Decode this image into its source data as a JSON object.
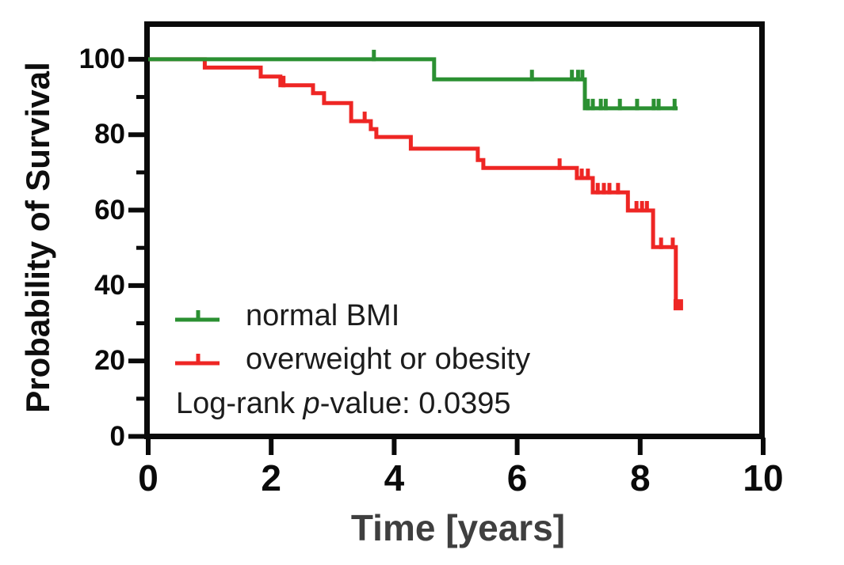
{
  "chart_data": {
    "type": "line",
    "subtype": "kaplan-meier-step",
    "title": "",
    "xlabel": "Time [years]",
    "ylabel": "Probability of Survival",
    "xlim": [
      0,
      10
    ],
    "ylim": [
      0,
      100
    ],
    "grid": false,
    "legend_position": "inside-lower-left",
    "axis_color": "#0a0a0a",
    "x_axis": {
      "major_ticks": [
        0,
        2,
        4,
        6,
        8,
        10
      ]
    },
    "y_axis": {
      "major_ticks": [
        0,
        20,
        40,
        60,
        80,
        100
      ],
      "minor_ticks": [
        10,
        30,
        50,
        70,
        90
      ]
    },
    "annotation": {
      "prefix": "Log-rank ",
      "italic": "p",
      "suffix": "-value: 0.0395"
    },
    "series": [
      {
        "name": "normal BMI",
        "color": "#2b9032",
        "steps": [
          [
            0,
            100
          ],
          [
            4.65,
            94.7
          ],
          [
            7.1,
            87.0
          ]
        ],
        "end_time": 8.61,
        "censors": [
          [
            3.67,
            100
          ],
          [
            6.24,
            94.7
          ],
          [
            6.89,
            94.7
          ],
          [
            6.99,
            94.7
          ],
          [
            7.06,
            94.7
          ],
          [
            7.15,
            87.0
          ],
          [
            7.23,
            87.0
          ],
          [
            7.36,
            87.0
          ],
          [
            7.44,
            87.0
          ],
          [
            7.67,
            87.0
          ],
          [
            7.95,
            87.0
          ],
          [
            8.22,
            87.0
          ],
          [
            8.3,
            87.0
          ],
          [
            8.56,
            87.0
          ]
        ]
      },
      {
        "name": "overweight or obesity",
        "color": "#ee2624",
        "steps": [
          [
            0,
            100
          ],
          [
            0.92,
            97.8
          ],
          [
            1.83,
            95.4
          ],
          [
            2.15,
            93.1
          ],
          [
            2.68,
            91.0
          ],
          [
            2.86,
            88.4
          ],
          [
            3.3,
            83.6
          ],
          [
            3.62,
            81.5
          ],
          [
            3.71,
            79.4
          ],
          [
            4.27,
            76.3
          ],
          [
            5.36,
            73.3
          ],
          [
            5.45,
            71.2
          ],
          [
            6.97,
            68.5
          ],
          [
            7.23,
            64.7
          ],
          [
            7.8,
            59.9
          ],
          [
            8.21,
            50.2
          ],
          [
            8.58,
            34.9
          ]
        ],
        "end_time": 8.67,
        "end_marker": [
          8.62,
          34.9
        ],
        "censors": [
          [
            2.2,
            93.1
          ],
          [
            3.52,
            83.6
          ],
          [
            6.69,
            71.2
          ],
          [
            7.05,
            68.5
          ],
          [
            7.15,
            68.5
          ],
          [
            7.31,
            64.7
          ],
          [
            7.41,
            64.7
          ],
          [
            7.5,
            64.7
          ],
          [
            7.64,
            64.7
          ],
          [
            7.94,
            59.9
          ],
          [
            8.03,
            59.9
          ],
          [
            8.11,
            59.9
          ],
          [
            8.34,
            50.2
          ],
          [
            8.53,
            50.2
          ]
        ]
      }
    ]
  }
}
